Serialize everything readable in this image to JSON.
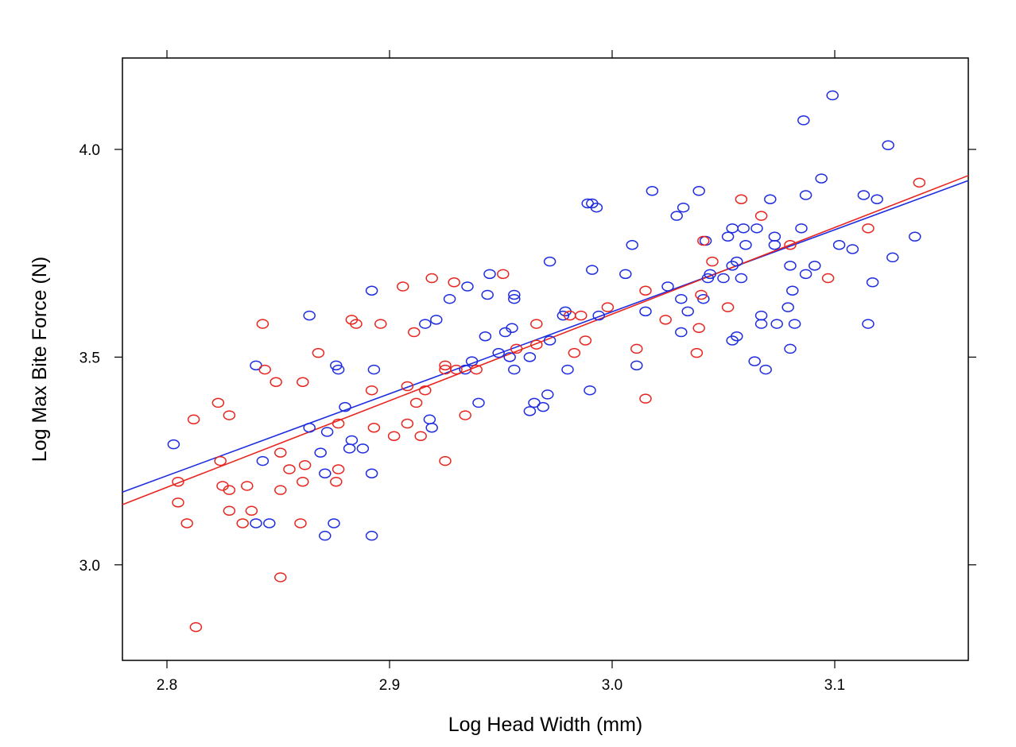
{
  "chart_data": {
    "type": "scatter",
    "title": "",
    "xlabel": "Log Head Width (mm)",
    "ylabel": "Log Max Bite Force (N)",
    "xlim": [
      2.78,
      3.16
    ],
    "ylim": [
      2.77,
      4.22
    ],
    "x_ticks": [
      2.8,
      2.9,
      3.0,
      3.1
    ],
    "x_tick_labels": [
      "2.8",
      "2.9",
      "3.0",
      "3.1"
    ],
    "y_ticks": [
      3.0,
      3.5,
      4.0
    ],
    "y_tick_labels": [
      "3.0",
      "3.5",
      "4.0"
    ],
    "grid": false,
    "legend": "none",
    "series": [
      {
        "color": "#1f2de0",
        "fit": {
          "x": [
            2.78,
            3.16
          ],
          "y": [
            3.175,
            3.925
          ]
        },
        "points": [
          [
            2.803,
            3.29
          ],
          [
            2.84,
            3.48
          ],
          [
            2.843,
            3.25
          ],
          [
            2.84,
            3.1
          ],
          [
            2.846,
            3.1
          ],
          [
            2.864,
            3.6
          ],
          [
            2.864,
            3.33
          ],
          [
            2.869,
            3.27
          ],
          [
            2.871,
            3.22
          ],
          [
            2.871,
            3.07
          ],
          [
            2.872,
            3.32
          ],
          [
            2.875,
            3.1
          ],
          [
            2.876,
            3.48
          ],
          [
            2.877,
            3.47
          ],
          [
            2.88,
            3.38
          ],
          [
            2.882,
            3.28
          ],
          [
            2.883,
            3.3
          ],
          [
            2.888,
            3.28
          ],
          [
            2.892,
            3.66
          ],
          [
            2.893,
            3.47
          ],
          [
            2.892,
            3.22
          ],
          [
            2.892,
            3.07
          ],
          [
            2.916,
            3.58
          ],
          [
            2.918,
            3.35
          ],
          [
            2.919,
            3.33
          ],
          [
            2.921,
            3.59
          ],
          [
            2.927,
            3.64
          ],
          [
            2.935,
            3.67
          ],
          [
            2.934,
            3.47
          ],
          [
            2.937,
            3.49
          ],
          [
            2.94,
            3.39
          ],
          [
            2.943,
            3.55
          ],
          [
            2.944,
            3.65
          ],
          [
            2.945,
            3.7
          ],
          [
            2.949,
            3.51
          ],
          [
            2.952,
            3.56
          ],
          [
            2.954,
            3.5
          ],
          [
            2.955,
            3.57
          ],
          [
            2.956,
            3.64
          ],
          [
            2.956,
            3.65
          ],
          [
            2.956,
            3.47
          ],
          [
            2.963,
            3.37
          ],
          [
            2.963,
            3.5
          ],
          [
            2.965,
            3.39
          ],
          [
            2.969,
            3.38
          ],
          [
            2.971,
            3.41
          ],
          [
            2.972,
            3.54
          ],
          [
            2.972,
            3.73
          ],
          [
            2.978,
            3.6
          ],
          [
            2.979,
            3.61
          ],
          [
            2.98,
            3.47
          ],
          [
            2.989,
            3.87
          ],
          [
            2.991,
            3.87
          ],
          [
            2.993,
            3.86
          ],
          [
            2.99,
            3.42
          ],
          [
            2.991,
            3.71
          ],
          [
            2.994,
            3.6
          ],
          [
            3.006,
            3.7
          ],
          [
            3.009,
            3.77
          ],
          [
            3.011,
            3.48
          ],
          [
            3.015,
            3.61
          ],
          [
            3.018,
            3.9
          ],
          [
            3.025,
            3.67
          ],
          [
            3.029,
            3.84
          ],
          [
            3.031,
            3.64
          ],
          [
            3.031,
            3.56
          ],
          [
            3.032,
            3.86
          ],
          [
            3.034,
            3.61
          ],
          [
            3.039,
            3.9
          ],
          [
            3.041,
            3.64
          ],
          [
            3.042,
            3.78
          ],
          [
            3.043,
            3.69
          ],
          [
            3.044,
            3.7
          ],
          [
            3.05,
            3.69
          ],
          [
            3.052,
            3.79
          ],
          [
            3.054,
            3.81
          ],
          [
            3.054,
            3.72
          ],
          [
            3.054,
            3.54
          ],
          [
            3.056,
            3.73
          ],
          [
            3.056,
            3.55
          ],
          [
            3.058,
            3.69
          ],
          [
            3.059,
            3.81
          ],
          [
            3.06,
            3.77
          ],
          [
            3.064,
            3.49
          ],
          [
            3.065,
            3.81
          ],
          [
            3.067,
            3.6
          ],
          [
            3.067,
            3.58
          ],
          [
            3.069,
            3.47
          ],
          [
            3.071,
            3.88
          ],
          [
            3.073,
            3.77
          ],
          [
            3.073,
            3.79
          ],
          [
            3.074,
            3.58
          ],
          [
            3.079,
            3.62
          ],
          [
            3.08,
            3.72
          ],
          [
            3.08,
            3.52
          ],
          [
            3.081,
            3.66
          ],
          [
            3.082,
            3.58
          ],
          [
            3.085,
            3.81
          ],
          [
            3.086,
            4.07
          ],
          [
            3.087,
            3.89
          ],
          [
            3.087,
            3.7
          ],
          [
            3.091,
            3.72
          ],
          [
            3.094,
            3.93
          ],
          [
            3.099,
            4.13
          ],
          [
            3.102,
            3.77
          ],
          [
            3.108,
            3.76
          ],
          [
            3.113,
            3.89
          ],
          [
            3.115,
            3.58
          ],
          [
            3.117,
            3.68
          ],
          [
            3.119,
            3.88
          ],
          [
            3.124,
            4.01
          ],
          [
            3.126,
            3.74
          ],
          [
            3.136,
            3.79
          ]
        ]
      },
      {
        "color": "#e8261f",
        "fit": {
          "x": [
            2.78,
            3.16
          ],
          "y": [
            3.145,
            3.937
          ]
        },
        "points": [
          [
            2.805,
            3.2
          ],
          [
            2.805,
            3.15
          ],
          [
            2.809,
            3.1
          ],
          [
            2.812,
            3.35
          ],
          [
            2.813,
            2.85
          ],
          [
            2.823,
            3.39
          ],
          [
            2.824,
            3.25
          ],
          [
            2.825,
            3.19
          ],
          [
            2.828,
            3.36
          ],
          [
            2.828,
            3.18
          ],
          [
            2.828,
            3.13
          ],
          [
            2.834,
            3.1
          ],
          [
            2.836,
            3.19
          ],
          [
            2.838,
            3.13
          ],
          [
            2.843,
            3.58
          ],
          [
            2.844,
            3.47
          ],
          [
            2.849,
            3.44
          ],
          [
            2.851,
            3.27
          ],
          [
            2.851,
            3.18
          ],
          [
            2.851,
            2.97
          ],
          [
            2.855,
            3.23
          ],
          [
            2.861,
            3.44
          ],
          [
            2.861,
            3.2
          ],
          [
            2.86,
            3.1
          ],
          [
            2.862,
            3.24
          ],
          [
            2.868,
            3.51
          ],
          [
            2.876,
            3.2
          ],
          [
            2.877,
            3.23
          ],
          [
            2.877,
            3.34
          ],
          [
            2.883,
            3.59
          ],
          [
            2.885,
            3.58
          ],
          [
            2.896,
            3.58
          ],
          [
            2.892,
            3.42
          ],
          [
            2.893,
            3.33
          ],
          [
            2.902,
            3.31
          ],
          [
            2.906,
            3.67
          ],
          [
            2.908,
            3.43
          ],
          [
            2.908,
            3.34
          ],
          [
            2.911,
            3.56
          ],
          [
            2.912,
            3.39
          ],
          [
            2.914,
            3.31
          ],
          [
            2.916,
            3.42
          ],
          [
            2.919,
            3.69
          ],
          [
            2.925,
            3.47
          ],
          [
            2.925,
            3.48
          ],
          [
            2.925,
            3.25
          ],
          [
            2.929,
            3.68
          ],
          [
            2.93,
            3.47
          ],
          [
            2.934,
            3.36
          ],
          [
            2.939,
            3.47
          ],
          [
            2.951,
            3.7
          ],
          [
            2.957,
            3.52
          ],
          [
            2.966,
            3.53
          ],
          [
            2.966,
            3.58
          ],
          [
            2.981,
            3.6
          ],
          [
            2.983,
            3.51
          ],
          [
            2.986,
            3.6
          ],
          [
            2.988,
            3.54
          ],
          [
            2.998,
            3.62
          ],
          [
            3.011,
            3.52
          ],
          [
            3.015,
            3.66
          ],
          [
            3.015,
            3.4
          ],
          [
            3.024,
            3.59
          ],
          [
            3.038,
            3.51
          ],
          [
            3.039,
            3.57
          ],
          [
            3.04,
            3.65
          ],
          [
            3.041,
            3.78
          ],
          [
            3.045,
            3.73
          ],
          [
            3.052,
            3.62
          ],
          [
            3.058,
            3.88
          ],
          [
            3.067,
            3.84
          ],
          [
            3.08,
            3.77
          ],
          [
            3.097,
            3.69
          ],
          [
            3.115,
            3.81
          ],
          [
            3.138,
            3.92
          ]
        ]
      }
    ]
  }
}
